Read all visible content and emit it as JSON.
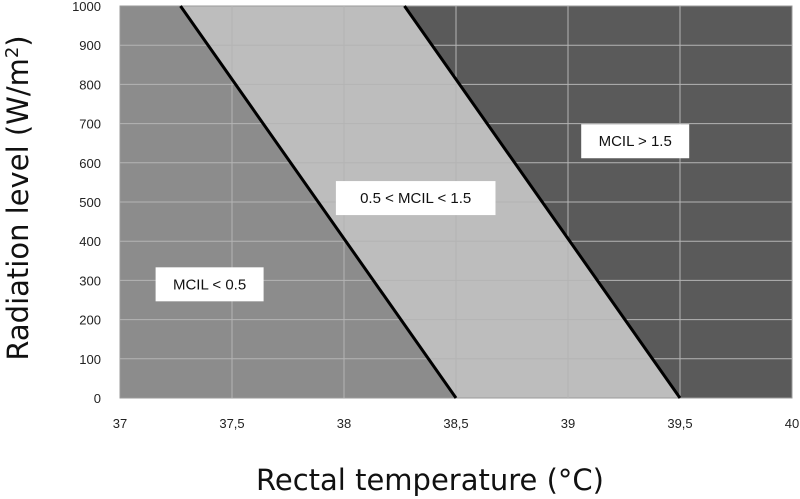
{
  "chart_data": {
    "type": "area",
    "title": "",
    "xlabel": "Rectal temperature (°C)",
    "ylabel_main": "Radiation level (W/m",
    "ylabel_sup": "2",
    "ylabel_end": ")",
    "xlim": [
      37,
      40
    ],
    "ylim": [
      0,
      1000
    ],
    "x_ticks": [
      37,
      37.5,
      38,
      38.5,
      39,
      39.5,
      40
    ],
    "x_tick_labels": [
      "37",
      "37,5",
      "38",
      "38,5",
      "39",
      "39,5",
      "40"
    ],
    "y_ticks": [
      0,
      100,
      200,
      300,
      400,
      500,
      600,
      700,
      800,
      900,
      1000
    ],
    "y_tick_labels": [
      "0",
      "100",
      "200",
      "300",
      "400",
      "500",
      "600",
      "700",
      "800",
      "900",
      "1000"
    ],
    "grid": true,
    "boundaries": [
      {
        "name": "MCIL = 0.5",
        "points": [
          [
            38.5,
            0
          ],
          [
            37.27,
            1000
          ]
        ]
      },
      {
        "name": "MCIL = 1.5",
        "points": [
          [
            39.5,
            0
          ],
          [
            38.27,
            1000
          ]
        ]
      }
    ],
    "regions": [
      {
        "name": "low",
        "label": "MCIL < 0.5",
        "color": "#8c8c8c",
        "label_at": [
          37.4,
          290
        ]
      },
      {
        "name": "mid",
        "label": "0.5 < MCIL < 1.5",
        "color": "#bdbdbd",
        "label_at": [
          38.32,
          510
        ]
      },
      {
        "name": "high",
        "label": "MCIL > 1.5",
        "color": "#5a5a5a",
        "label_at": [
          39.3,
          655
        ]
      }
    ],
    "colors": {
      "grid": "#b4b4b4",
      "boundary": "#000000",
      "frame": "#9a9a9a"
    }
  }
}
